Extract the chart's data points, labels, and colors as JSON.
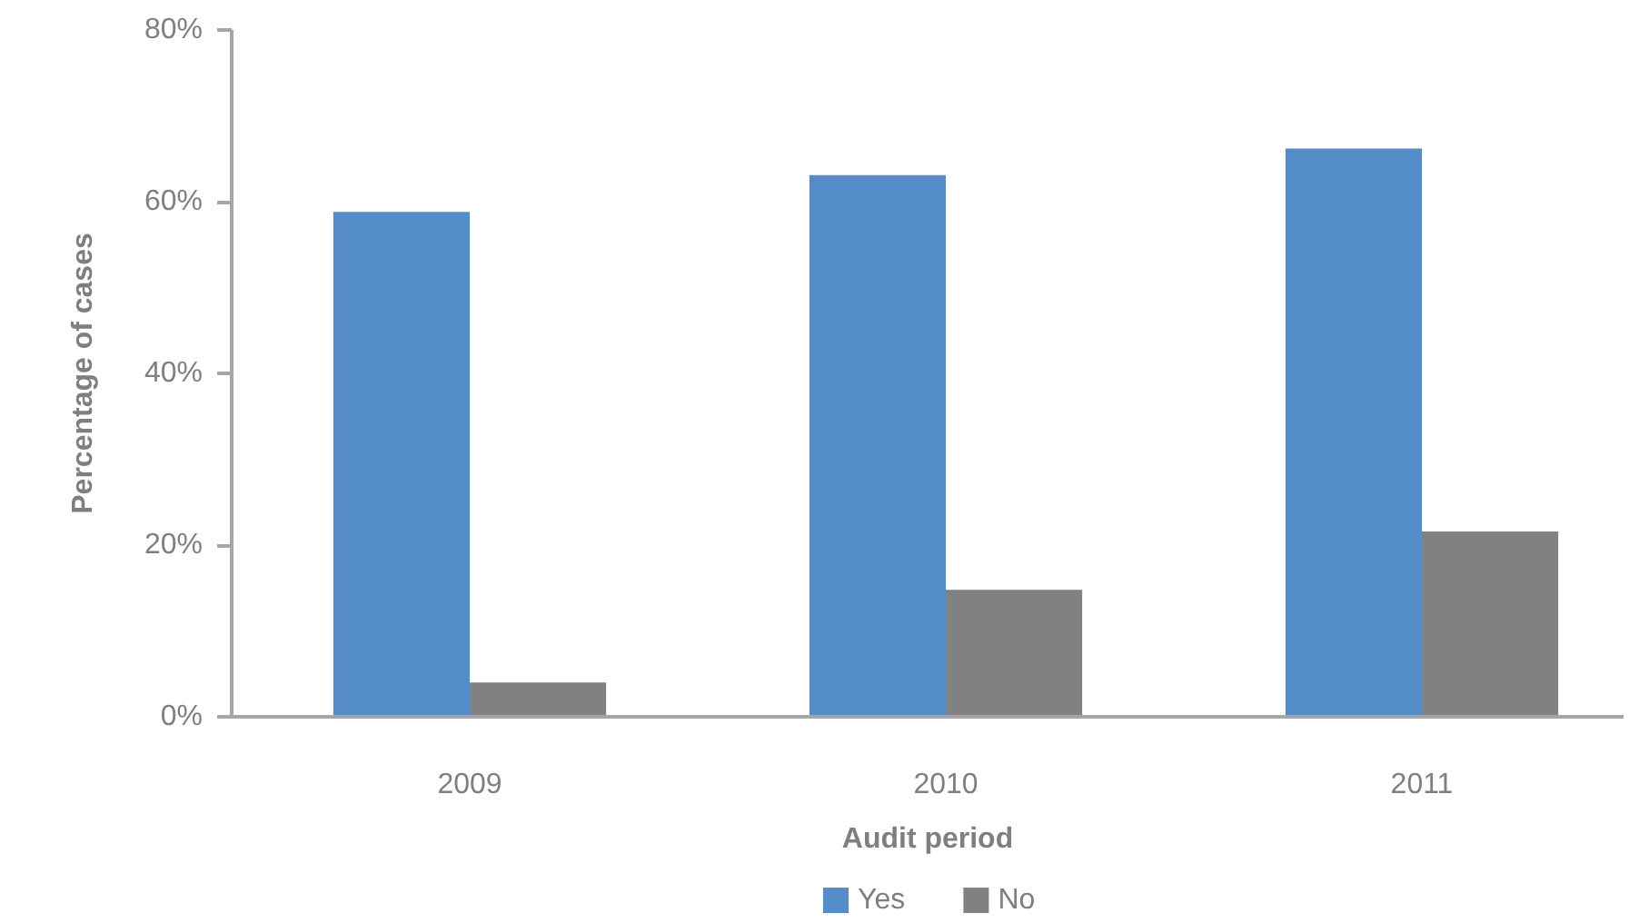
{
  "chart_data": {
    "type": "bar",
    "xlabel": "Audit period",
    "ylabel": "Percentage of cases",
    "categories": [
      "2009",
      "2010",
      "2011"
    ],
    "series": [
      {
        "name": "Yes",
        "color": "#548bc9",
        "values": [
          58.8,
          63.1,
          66.2
        ]
      },
      {
        "name": "No",
        "color": "#818183",
        "values": [
          4.0,
          14.8,
          21.6
        ]
      }
    ],
    "ylim": [
      0,
      80
    ],
    "yticks": [
      {
        "value": 0,
        "label": "0%"
      },
      {
        "value": 20,
        "label": "20%"
      },
      {
        "value": 40,
        "label": "40%"
      },
      {
        "value": 60,
        "label": "60%"
      },
      {
        "value": 80,
        "label": "80%"
      }
    ],
    "legend": "bottom"
  }
}
